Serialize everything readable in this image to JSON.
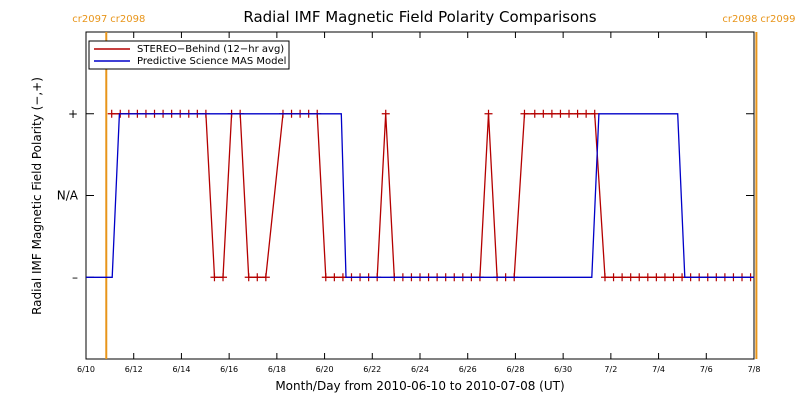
{
  "chart_data": {
    "type": "line",
    "title": "Radial IMF Magnetic Field Polarity Comparisons",
    "xlabel": "Month/Day from 2010-06-10 to 2010-07-08 (UT)",
    "ylabel": "Radial IMF Magnetic Field Polarity (−,+)",
    "x_ticks": [
      "6/10",
      "6/12",
      "6/14",
      "6/16",
      "6/18",
      "6/20",
      "6/22",
      "6/24",
      "6/26",
      "6/28",
      "6/30",
      "7/2",
      "7/4",
      "7/6",
      "7/8"
    ],
    "y_ticks": [
      {
        "label": "+",
        "value": 1
      },
      {
        "label": "N/A",
        "value": 0
      },
      {
        "label": "–",
        "value": -1
      }
    ],
    "xlim_days": [
      0,
      28
    ],
    "ylim": [
      -2,
      2
    ],
    "carrington": [
      {
        "label": "cr2097",
        "day": 0.85,
        "color": "#e8951a"
      },
      {
        "label": "cr2098",
        "day": 0.85,
        "color": "#e8951a"
      },
      {
        "label": "cr2098",
        "day": 28.1,
        "color": "#e8951a"
      },
      {
        "label": "cr2099",
        "day": 28.1,
        "color": "#e8951a"
      }
    ],
    "legend": {
      "placement": "top-left"
    },
    "series": [
      {
        "name": "STEREO−Behind (12−hr avg)",
        "color": "#b40000",
        "marker": "plus",
        "points": [
          [
            1.5,
            1
          ],
          [
            2.0,
            1
          ],
          [
            2.5,
            1
          ],
          [
            3.0,
            1
          ],
          [
            3.5,
            1
          ],
          [
            4.0,
            1
          ],
          [
            4.5,
            1
          ],
          [
            5.0,
            1
          ],
          [
            5.5,
            1
          ],
          [
            6.0,
            1
          ],
          [
            6.5,
            1
          ],
          [
            7.0,
            1
          ],
          [
            7.5,
            -1
          ],
          [
            8.0,
            -1
          ],
          [
            8.5,
            1
          ],
          [
            9.0,
            1
          ],
          [
            9.5,
            -1
          ],
          [
            10.0,
            -1
          ],
          [
            10.5,
            -1
          ],
          [
            11.5,
            1
          ],
          [
            12.0,
            1
          ],
          [
            12.5,
            1
          ],
          [
            13.0,
            1
          ],
          [
            13.5,
            1
          ],
          [
            14.0,
            -1
          ],
          [
            14.5,
            -1
          ],
          [
            15.0,
            -1
          ],
          [
            15.5,
            -1
          ],
          [
            16.0,
            -1
          ],
          [
            16.5,
            -1
          ],
          [
            17.0,
            -1
          ],
          [
            17.5,
            1
          ],
          [
            18.0,
            -1
          ],
          [
            18.5,
            -1
          ],
          [
            19.0,
            -1
          ],
          [
            19.5,
            -1
          ],
          [
            20.0,
            -1
          ],
          [
            20.5,
            -1
          ],
          [
            21.0,
            -1
          ],
          [
            21.5,
            -1
          ],
          [
            22.0,
            -1
          ],
          [
            22.5,
            -1
          ],
          [
            23.0,
            -1
          ],
          [
            23.5,
            1
          ],
          [
            24.0,
            -1
          ],
          [
            24.5,
            -1
          ],
          [
            25.0,
            -1
          ],
          [
            25.6,
            1
          ],
          [
            26.2,
            1
          ],
          [
            26.7,
            1
          ],
          [
            27.2,
            1
          ],
          [
            27.7,
            1
          ],
          [
            28.2,
            1
          ],
          [
            28.7,
            1
          ],
          [
            29.2,
            1
          ],
          [
            29.7,
            1
          ],
          [
            30.3,
            -1
          ],
          [
            30.8,
            -1
          ],
          [
            31.3,
            -1
          ],
          [
            31.8,
            -1
          ],
          [
            32.3,
            -1
          ],
          [
            32.8,
            -1
          ],
          [
            33.3,
            -1
          ],
          [
            33.8,
            -1
          ],
          [
            34.3,
            -1
          ],
          [
            34.8,
            -1
          ],
          [
            35.3,
            -1
          ],
          [
            35.8,
            -1
          ],
          [
            36.3,
            -1
          ],
          [
            36.8,
            -1
          ],
          [
            37.3,
            -1
          ],
          [
            37.8,
            -1
          ],
          [
            38.3,
            -1
          ],
          [
            38.8,
            -1
          ]
        ]
      },
      {
        "name": "Predictive Science MAS Model",
        "color": "#0000c8",
        "marker": "none",
        "points": [
          [
            0.0,
            -1
          ],
          [
            1.1,
            -1
          ],
          [
            1.4,
            1
          ],
          [
            10.7,
            1
          ],
          [
            10.9,
            -1
          ],
          [
            21.2,
            -1
          ],
          [
            21.5,
            1
          ],
          [
            24.8,
            1
          ],
          [
            25.1,
            -1
          ],
          [
            28.0,
            -1
          ]
        ]
      }
    ]
  }
}
